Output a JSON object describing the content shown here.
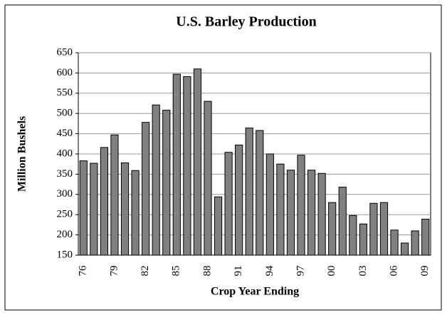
{
  "chart_data": {
    "type": "bar",
    "title": "U.S. Barley Production",
    "x_label": "Crop Year Ending",
    "y_label": "Million Bushels",
    "categories": [
      "76",
      null,
      null,
      "79",
      null,
      null,
      "82",
      null,
      null,
      "85",
      null,
      null,
      "88",
      null,
      null,
      "91",
      null,
      null,
      "94",
      null,
      null,
      "97",
      null,
      null,
      "00",
      null,
      null,
      "03",
      null,
      null,
      "06",
      null,
      null,
      "09"
    ],
    "values": [
      383,
      377,
      416,
      447,
      378,
      359,
      478,
      521,
      508,
      597,
      591,
      610,
      530,
      294,
      404,
      422,
      464,
      458,
      400,
      375,
      360,
      397,
      360,
      352,
      280,
      318,
      248,
      227,
      278,
      280,
      212,
      180,
      210,
      239
    ],
    "color": "#808080",
    "ylim": [
      150,
      650
    ],
    "yticks": [
      150,
      200,
      250,
      300,
      350,
      400,
      450,
      500,
      550,
      600,
      650
    ],
    "grid": true
  }
}
